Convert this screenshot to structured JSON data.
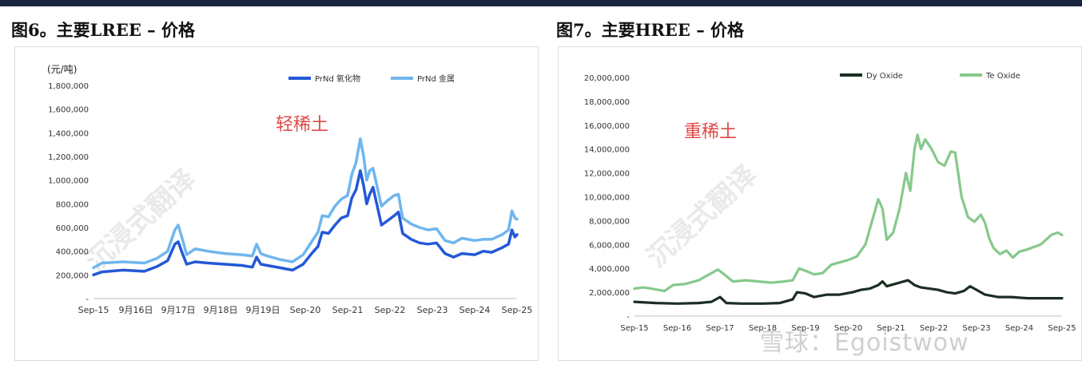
{
  "fig6": {
    "title": "图6。主要LREE – 价格",
    "annotation": "轻稀土",
    "watermark": "沉浸式翻译",
    "chart_data": {
      "type": "line",
      "ylabel": "(元/吨)",
      "ylim": [
        0,
        1800000
      ],
      "yticks": [
        "-",
        "200,000",
        "400,000",
        "600,000",
        "800,000",
        "1,000,000",
        "1,200,000",
        "1,400,000",
        "1,600,000",
        "1,800,000"
      ],
      "xlim": [
        2015.8,
        2025.8
      ],
      "xticks": [
        {
          "x": 2015.8,
          "label": "Sep-15"
        },
        {
          "x": 2016.8,
          "label": "9月16日"
        },
        {
          "x": 2017.8,
          "label": "9月17日"
        },
        {
          "x": 2018.8,
          "label": "9月18日"
        },
        {
          "x": 2019.8,
          "label": "9月19日"
        },
        {
          "x": 2020.8,
          "label": "Sep-20"
        },
        {
          "x": 2021.8,
          "label": "Sep-21"
        },
        {
          "x": 2022.8,
          "label": "Sep-22"
        },
        {
          "x": 2023.8,
          "label": "Sep-23"
        },
        {
          "x": 2024.8,
          "label": "Sep-24"
        },
        {
          "x": 2025.8,
          "label": "Sep-25"
        }
      ],
      "legend_position": "top",
      "series": [
        {
          "name": "PrNd 氧化物",
          "color": "#2458d6",
          "width": 3.5,
          "points": [
            [
              2015.8,
              200000
            ],
            [
              2016.0,
              225000
            ],
            [
              2016.5,
              240000
            ],
            [
              2017.0,
              230000
            ],
            [
              2017.3,
              270000
            ],
            [
              2017.55,
              320000
            ],
            [
              2017.72,
              460000
            ],
            [
              2017.8,
              480000
            ],
            [
              2017.9,
              380000
            ],
            [
              2018.0,
              290000
            ],
            [
              2018.2,
              310000
            ],
            [
              2018.5,
              300000
            ],
            [
              2018.9,
              290000
            ],
            [
              2019.3,
              280000
            ],
            [
              2019.55,
              265000
            ],
            [
              2019.65,
              350000
            ],
            [
              2019.75,
              290000
            ],
            [
              2019.9,
              280000
            ],
            [
              2020.2,
              260000
            ],
            [
              2020.5,
              240000
            ],
            [
              2020.75,
              290000
            ],
            [
              2020.95,
              380000
            ],
            [
              2021.1,
              440000
            ],
            [
              2021.2,
              560000
            ],
            [
              2021.35,
              550000
            ],
            [
              2021.5,
              620000
            ],
            [
              2021.65,
              680000
            ],
            [
              2021.8,
              700000
            ],
            [
              2021.9,
              850000
            ],
            [
              2022.0,
              920000
            ],
            [
              2022.1,
              1080000
            ],
            [
              2022.18,
              950000
            ],
            [
              2022.25,
              800000
            ],
            [
              2022.32,
              880000
            ],
            [
              2022.4,
              940000
            ],
            [
              2022.5,
              780000
            ],
            [
              2022.6,
              620000
            ],
            [
              2022.75,
              660000
            ],
            [
              2022.9,
              700000
            ],
            [
              2023.0,
              730000
            ],
            [
              2023.1,
              550000
            ],
            [
              2023.3,
              500000
            ],
            [
              2023.5,
              470000
            ],
            [
              2023.7,
              460000
            ],
            [
              2023.9,
              470000
            ],
            [
              2024.1,
              380000
            ],
            [
              2024.3,
              350000
            ],
            [
              2024.5,
              380000
            ],
            [
              2024.8,
              370000
            ],
            [
              2025.0,
              400000
            ],
            [
              2025.2,
              390000
            ],
            [
              2025.45,
              430000
            ],
            [
              2025.6,
              460000
            ],
            [
              2025.68,
              580000
            ],
            [
              2025.75,
              520000
            ],
            [
              2025.8,
              540000
            ]
          ]
        },
        {
          "name": "PrNd 金属",
          "color": "#6fb6ef",
          "width": 3.5,
          "points": [
            [
              2015.8,
              260000
            ],
            [
              2016.0,
              300000
            ],
            [
              2016.5,
              310000
            ],
            [
              2017.0,
              300000
            ],
            [
              2017.3,
              340000
            ],
            [
              2017.55,
              400000
            ],
            [
              2017.72,
              580000
            ],
            [
              2017.8,
              620000
            ],
            [
              2017.9,
              500000
            ],
            [
              2018.0,
              370000
            ],
            [
              2018.2,
              420000
            ],
            [
              2018.5,
              400000
            ],
            [
              2018.9,
              380000
            ],
            [
              2019.3,
              370000
            ],
            [
              2019.55,
              360000
            ],
            [
              2019.65,
              460000
            ],
            [
              2019.75,
              380000
            ],
            [
              2019.9,
              360000
            ],
            [
              2020.2,
              330000
            ],
            [
              2020.5,
              310000
            ],
            [
              2020.75,
              370000
            ],
            [
              2020.95,
              480000
            ],
            [
              2021.1,
              560000
            ],
            [
              2021.2,
              700000
            ],
            [
              2021.35,
              690000
            ],
            [
              2021.5,
              780000
            ],
            [
              2021.65,
              840000
            ],
            [
              2021.8,
              870000
            ],
            [
              2021.9,
              1050000
            ],
            [
              2022.0,
              1150000
            ],
            [
              2022.1,
              1350000
            ],
            [
              2022.18,
              1200000
            ],
            [
              2022.25,
              1000000
            ],
            [
              2022.32,
              1080000
            ],
            [
              2022.4,
              1100000
            ],
            [
              2022.5,
              940000
            ],
            [
              2022.6,
              780000
            ],
            [
              2022.75,
              830000
            ],
            [
              2022.9,
              870000
            ],
            [
              2023.0,
              880000
            ],
            [
              2023.1,
              680000
            ],
            [
              2023.3,
              630000
            ],
            [
              2023.5,
              600000
            ],
            [
              2023.7,
              580000
            ],
            [
              2023.9,
              590000
            ],
            [
              2024.1,
              490000
            ],
            [
              2024.3,
              470000
            ],
            [
              2024.5,
              510000
            ],
            [
              2024.8,
              490000
            ],
            [
              2025.0,
              500000
            ],
            [
              2025.2,
              500000
            ],
            [
              2025.45,
              540000
            ],
            [
              2025.6,
              580000
            ],
            [
              2025.68,
              740000
            ],
            [
              2025.75,
              680000
            ],
            [
              2025.8,
              670000
            ]
          ]
        }
      ]
    }
  },
  "fig7": {
    "title": "图7。主要HREE – 价格",
    "annotation": "重稀土",
    "watermark": "沉浸式翻译",
    "credit": "雪球：Egoistwow",
    "chart_data": {
      "type": "line",
      "ylim": [
        0,
        20000000
      ],
      "yticks": [
        "-",
        "2,000,000",
        "4,000,000",
        "6,000,000",
        "8,000,000",
        "10,000,000",
        "12,000,000",
        "14,000,000",
        "16,000,000",
        "18,000,000",
        "20,000,000"
      ],
      "xlim": [
        2015.8,
        2025.8
      ],
      "xticks": [
        {
          "x": 2015.8,
          "label": "Sep-15"
        },
        {
          "x": 2016.8,
          "label": "Sep-16"
        },
        {
          "x": 2017.8,
          "label": "Sep-17"
        },
        {
          "x": 2018.8,
          "label": "Sep-18"
        },
        {
          "x": 2019.8,
          "label": "Sep-19"
        },
        {
          "x": 2020.8,
          "label": "Sep-20"
        },
        {
          "x": 2021.8,
          "label": "Sep-21"
        },
        {
          "x": 2022.8,
          "label": "Sep-22"
        },
        {
          "x": 2023.8,
          "label": "Sep-23"
        },
        {
          "x": 2024.8,
          "label": "Sep-24"
        },
        {
          "x": 2025.8,
          "label": "Sep-25"
        }
      ],
      "legend_position": "top",
      "series": [
        {
          "name": "Dy Oxide",
          "color": "#1b2e22",
          "width": 3.2,
          "points": [
            [
              2015.8,
              1200000
            ],
            [
              2016.3,
              1100000
            ],
            [
              2016.8,
              1050000
            ],
            [
              2017.3,
              1100000
            ],
            [
              2017.6,
              1200000
            ],
            [
              2017.8,
              1600000
            ],
            [
              2017.95,
              1100000
            ],
            [
              2018.3,
              1050000
            ],
            [
              2018.8,
              1050000
            ],
            [
              2019.2,
              1100000
            ],
            [
              2019.5,
              1400000
            ],
            [
              2019.6,
              2000000
            ],
            [
              2019.8,
              1900000
            ],
            [
              2020.0,
              1600000
            ],
            [
              2020.3,
              1800000
            ],
            [
              2020.6,
              1800000
            ],
            [
              2020.9,
              2000000
            ],
            [
              2021.1,
              2200000
            ],
            [
              2021.3,
              2300000
            ],
            [
              2021.5,
              2600000
            ],
            [
              2021.6,
              2900000
            ],
            [
              2021.7,
              2500000
            ],
            [
              2021.9,
              2700000
            ],
            [
              2022.1,
              2900000
            ],
            [
              2022.2,
              3000000
            ],
            [
              2022.35,
              2600000
            ],
            [
              2022.5,
              2400000
            ],
            [
              2022.7,
              2300000
            ],
            [
              2022.9,
              2200000
            ],
            [
              2023.1,
              2000000
            ],
            [
              2023.3,
              1900000
            ],
            [
              2023.5,
              2100000
            ],
            [
              2023.65,
              2500000
            ],
            [
              2023.8,
              2200000
            ],
            [
              2024.0,
              1800000
            ],
            [
              2024.3,
              1600000
            ],
            [
              2024.6,
              1600000
            ],
            [
              2025.0,
              1500000
            ],
            [
              2025.4,
              1500000
            ],
            [
              2025.8,
              1500000
            ]
          ]
        },
        {
          "name": "Te Oxide",
          "color": "#86c98b",
          "width": 3.2,
          "points": [
            [
              2015.8,
              2300000
            ],
            [
              2016.0,
              2400000
            ],
            [
              2016.2,
              2300000
            ],
            [
              2016.5,
              2100000
            ],
            [
              2016.7,
              2600000
            ],
            [
              2017.0,
              2700000
            ],
            [
              2017.3,
              3000000
            ],
            [
              2017.55,
              3500000
            ],
            [
              2017.75,
              3900000
            ],
            [
              2017.9,
              3500000
            ],
            [
              2018.1,
              2900000
            ],
            [
              2018.4,
              3000000
            ],
            [
              2018.7,
              2900000
            ],
            [
              2019.0,
              2800000
            ],
            [
              2019.3,
              2900000
            ],
            [
              2019.5,
              3000000
            ],
            [
              2019.65,
              4000000
            ],
            [
              2019.8,
              3800000
            ],
            [
              2020.0,
              3500000
            ],
            [
              2020.2,
              3600000
            ],
            [
              2020.4,
              4300000
            ],
            [
              2020.6,
              4500000
            ],
            [
              2020.8,
              4700000
            ],
            [
              2021.0,
              5000000
            ],
            [
              2021.2,
              6000000
            ],
            [
              2021.4,
              8500000
            ],
            [
              2021.5,
              9800000
            ],
            [
              2021.6,
              9000000
            ],
            [
              2021.7,
              6400000
            ],
            [
              2021.85,
              7000000
            ],
            [
              2022.0,
              9000000
            ],
            [
              2022.15,
              12000000
            ],
            [
              2022.25,
              10500000
            ],
            [
              2022.35,
              14000000
            ],
            [
              2022.42,
              15200000
            ],
            [
              2022.5,
              14000000
            ],
            [
              2022.6,
              14800000
            ],
            [
              2022.75,
              14000000
            ],
            [
              2022.9,
              12900000
            ],
            [
              2023.05,
              12600000
            ],
            [
              2023.2,
              13800000
            ],
            [
              2023.3,
              13700000
            ],
            [
              2023.45,
              10000000
            ],
            [
              2023.6,
              8300000
            ],
            [
              2023.75,
              7900000
            ],
            [
              2023.9,
              8500000
            ],
            [
              2024.0,
              7800000
            ],
            [
              2024.1,
              6500000
            ],
            [
              2024.2,
              5700000
            ],
            [
              2024.35,
              5200000
            ],
            [
              2024.5,
              5500000
            ],
            [
              2024.65,
              4900000
            ],
            [
              2024.8,
              5400000
            ],
            [
              2025.0,
              5600000
            ],
            [
              2025.3,
              6000000
            ],
            [
              2025.55,
              6800000
            ],
            [
              2025.7,
              7000000
            ],
            [
              2025.8,
              6800000
            ]
          ]
        }
      ]
    }
  }
}
